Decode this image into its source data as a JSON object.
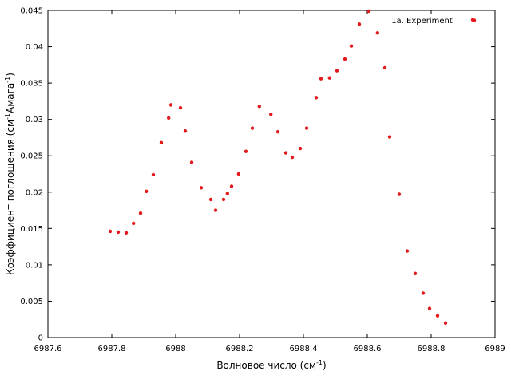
{
  "chart_data": {
    "type": "scatter",
    "title": "",
    "xlabel": "Волновое число (см",
    "xlabel_sup": "-1",
    "xlabel_end": ")",
    "ylabel": "Коэффициент поглощения (см",
    "ylabel_sup1": "-1",
    "ylabel_mid": "Амага",
    "ylabel_sup2": "-1",
    "ylabel_end": ")",
    "xlim": [
      6987.6,
      6989
    ],
    "ylim": [
      0,
      0.045
    ],
    "xticks": [
      6987.6,
      6987.8,
      6988,
      6988.2,
      6988.4,
      6988.6,
      6988.8,
      6989
    ],
    "xtick_labels": [
      "6987.6",
      "6987.8",
      "6988",
      "6988.2",
      "6988.4",
      "6988.6",
      "6988.8",
      "6989"
    ],
    "yticks": [
      0,
      0.005,
      0.01,
      0.015,
      0.02,
      0.025,
      0.03,
      0.035,
      0.04,
      0.045
    ],
    "ytick_labels": [
      "0",
      "0.005",
      "0.01",
      "0.015",
      "0.02",
      "0.025",
      "0.03",
      "0.035",
      "0.04",
      "0.045"
    ],
    "grid": false,
    "legend_position": "top-right",
    "series": [
      {
        "name": "1a. Experiment.",
        "color": "#e41a1c",
        "points": [
          [
            6987.795,
            0.0146
          ],
          [
            6987.82,
            0.0145
          ],
          [
            6987.845,
            0.0144
          ],
          [
            6987.868,
            0.0157
          ],
          [
            6987.89,
            0.0171
          ],
          [
            6987.908,
            0.0201
          ],
          [
            6987.93,
            0.0224
          ],
          [
            6987.955,
            0.0268
          ],
          [
            6987.978,
            0.0302
          ],
          [
            6987.985,
            0.032
          ],
          [
            6988.015,
            0.0316
          ],
          [
            6988.03,
            0.0284
          ],
          [
            6988.05,
            0.0241
          ],
          [
            6988.08,
            0.0206
          ],
          [
            6988.11,
            0.019
          ],
          [
            6988.125,
            0.0175
          ],
          [
            6988.15,
            0.019
          ],
          [
            6988.162,
            0.0198
          ],
          [
            6988.175,
            0.0208
          ],
          [
            6988.197,
            0.0225
          ],
          [
            6988.22,
            0.0256
          ],
          [
            6988.24,
            0.0288
          ],
          [
            6988.262,
            0.0318
          ],
          [
            6988.298,
            0.0307
          ],
          [
            6988.32,
            0.0283
          ],
          [
            6988.345,
            0.0254
          ],
          [
            6988.365,
            0.0248
          ],
          [
            6988.39,
            0.026
          ],
          [
            6988.41,
            0.0288
          ],
          [
            6988.44,
            0.033
          ],
          [
            6988.455,
            0.0356
          ],
          [
            6988.482,
            0.0357
          ],
          [
            6988.505,
            0.0367
          ],
          [
            6988.53,
            0.0383
          ],
          [
            6988.55,
            0.0401
          ],
          [
            6988.575,
            0.0431
          ],
          [
            6988.605,
            0.0449
          ],
          [
            6988.632,
            0.0419
          ],
          [
            6988.655,
            0.0371
          ],
          [
            6988.67,
            0.0276
          ],
          [
            6988.7,
            0.0197
          ],
          [
            6988.725,
            0.0119
          ],
          [
            6988.75,
            0.0088
          ],
          [
            6988.775,
            0.0061
          ],
          [
            6988.795,
            0.004
          ],
          [
            6988.82,
            0.003
          ],
          [
            6988.845,
            0.002
          ],
          [
            6988.93,
            0.0437
          ]
        ]
      }
    ]
  }
}
